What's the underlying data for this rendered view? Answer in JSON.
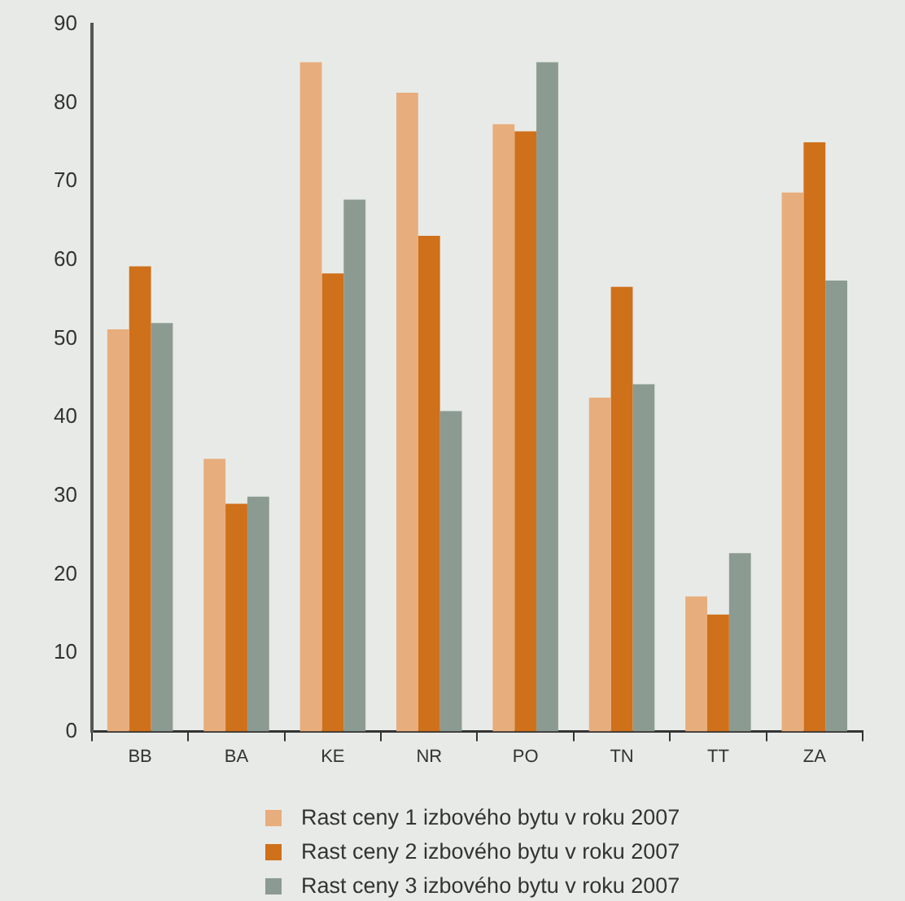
{
  "chart_data": {
    "type": "bar",
    "categories": [
      "BB",
      "BA",
      "KE",
      "NR",
      "PO",
      "TN",
      "TT",
      "ZA"
    ],
    "series": [
      {
        "name": "Rast ceny 1 izbového bytu v roku 2007",
        "color": "#e8ad7c",
        "values": [
          51.2,
          34.7,
          85.2,
          81.3,
          77.3,
          42.5,
          17.2,
          68.6
        ]
      },
      {
        "name": "Rast ceny 2 izbového bytu v roku 2007",
        "color": "#cf701b",
        "values": [
          59.2,
          29,
          58.3,
          63.1,
          76.4,
          56.6,
          14.9,
          75
        ]
      },
      {
        "name": "Rast ceny 3 izbového bytu v roku 2007",
        "color": "#8c9b91",
        "values": [
          52,
          29.9,
          67.7,
          40.8,
          85.2,
          44.2,
          22.7,
          57.4
        ]
      }
    ],
    "ylim": [
      0,
      90
    ],
    "yticks": [
      0,
      10,
      20,
      30,
      40,
      50,
      60,
      70,
      80,
      90
    ],
    "grid": false,
    "legend": "bottom"
  }
}
